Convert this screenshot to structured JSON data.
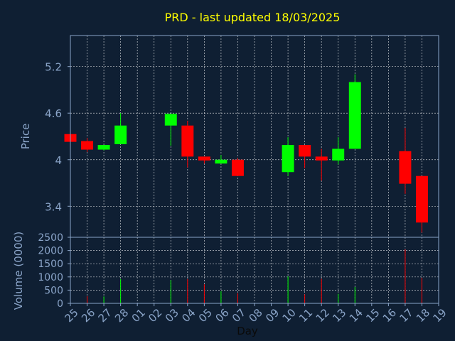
{
  "chart_data": [
    {
      "type": "candlestick",
      "title": "PRD - last updated 18/03/2025",
      "ylabel": "Price",
      "ylim": [
        3.0,
        5.6
      ],
      "yticks": [
        3.4,
        4,
        4.6,
        5.2
      ],
      "ytick_labels": [
        "3.4",
        "4",
        "4.6",
        "5.2"
      ],
      "grid": true,
      "colors": {
        "up": "#00ff00",
        "down": "#ff0000",
        "title": "#ffff00",
        "axis_text": "#8aa4c8",
        "grid": "#ffffff",
        "background": "#0f1f33"
      },
      "x": [
        "25",
        "26",
        "27",
        "28",
        "01",
        "02",
        "03",
        "04",
        "05",
        "06",
        "07",
        "08",
        "09",
        "10",
        "11",
        "12",
        "13",
        "14",
        "15",
        "16",
        "17",
        "18",
        "19"
      ],
      "candles": [
        {
          "day": "25",
          "open": 4.33,
          "close": 4.23,
          "high": 4.33,
          "low": 4.23
        },
        {
          "day": "26",
          "open": 4.24,
          "close": 4.13,
          "high": 4.28,
          "low": 4.1
        },
        {
          "day": "27",
          "open": 4.13,
          "close": 4.19,
          "high": 4.19,
          "low": 4.12
        },
        {
          "day": "28",
          "open": 4.2,
          "close": 4.44,
          "high": 4.6,
          "low": 4.2
        },
        {
          "day": "03",
          "open": 4.44,
          "close": 4.59,
          "high": 4.59,
          "low": 4.18
        },
        {
          "day": "04",
          "open": 4.44,
          "close": 4.04,
          "high": 4.5,
          "low": 3.9
        },
        {
          "day": "05",
          "open": 4.04,
          "close": 3.99,
          "high": 4.04,
          "low": 3.95
        },
        {
          "day": "06",
          "open": 3.95,
          "close": 4.0,
          "high": 4.06,
          "low": 3.95
        },
        {
          "day": "07",
          "open": 4.0,
          "close": 3.79,
          "high": 4.02,
          "low": 3.79
        },
        {
          "day": "10",
          "open": 3.84,
          "close": 4.19,
          "high": 4.29,
          "low": 3.79
        },
        {
          "day": "11",
          "open": 4.19,
          "close": 4.04,
          "high": 4.19,
          "low": 3.89
        },
        {
          "day": "12",
          "open": 4.04,
          "close": 3.99,
          "high": 4.14,
          "low": 3.73
        },
        {
          "day": "13",
          "open": 3.99,
          "close": 4.14,
          "high": 4.29,
          "low": 3.94
        },
        {
          "day": "14",
          "open": 4.14,
          "close": 5.0,
          "high": 5.1,
          "low": 4.14
        },
        {
          "day": "17",
          "open": 4.11,
          "close": 3.69,
          "high": 4.41,
          "low": 3.56
        },
        {
          "day": "18",
          "open": 3.79,
          "close": 3.19,
          "high": 3.79,
          "low": 3.06
        }
      ]
    },
    {
      "type": "bar",
      "ylabel": "Volume (0000)",
      "xlabel": "Day",
      "ylim": [
        0,
        2500
      ],
      "yticks": [
        0,
        500,
        1000,
        1500,
        2000,
        2500
      ],
      "ytick_labels": [
        "0",
        "500",
        "1000",
        "1500",
        "2000",
        "2500"
      ],
      "x": [
        "25",
        "26",
        "27",
        "28",
        "01",
        "02",
        "03",
        "04",
        "05",
        "06",
        "07",
        "08",
        "09",
        "10",
        "11",
        "12",
        "13",
        "14",
        "15",
        "16",
        "17",
        "18",
        "19"
      ],
      "bars": [
        {
          "day": "25",
          "value": 20,
          "direction": "down"
        },
        {
          "day": "26",
          "value": 270,
          "direction": "down"
        },
        {
          "day": "27",
          "value": 260,
          "direction": "up"
        },
        {
          "day": "28",
          "value": 920,
          "direction": "up"
        },
        {
          "day": "03",
          "value": 880,
          "direction": "up"
        },
        {
          "day": "04",
          "value": 920,
          "direction": "down"
        },
        {
          "day": "05",
          "value": 720,
          "direction": "down"
        },
        {
          "day": "06",
          "value": 460,
          "direction": "up"
        },
        {
          "day": "07",
          "value": 380,
          "direction": "down"
        },
        {
          "day": "10",
          "value": 1020,
          "direction": "up"
        },
        {
          "day": "11",
          "value": 340,
          "direction": "down"
        },
        {
          "day": "12",
          "value": 930,
          "direction": "down"
        },
        {
          "day": "13",
          "value": 360,
          "direction": "up"
        },
        {
          "day": "14",
          "value": 620,
          "direction": "up"
        },
        {
          "day": "17",
          "value": 2040,
          "direction": "down"
        },
        {
          "day": "18",
          "value": 970,
          "direction": "down"
        }
      ]
    }
  ]
}
